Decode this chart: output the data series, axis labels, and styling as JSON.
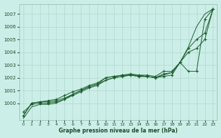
{
  "xlabel": "Graphe pression niveau de la mer (hPa)",
  "background_color": "#cceee8",
  "grid_color": "#b0d8cc",
  "line_color": "#1a5c2a",
  "xlim": [
    -0.5,
    23.5
  ],
  "ylim": [
    998.7,
    1007.8
  ],
  "yticks": [
    1000,
    1001,
    1002,
    1003,
    1004,
    1005,
    1006,
    1007
  ],
  "xticks": [
    0,
    1,
    2,
    3,
    4,
    5,
    6,
    7,
    8,
    9,
    10,
    11,
    12,
    13,
    14,
    15,
    16,
    17,
    18,
    19,
    20,
    21,
    22,
    23
  ],
  "series": [
    {
      "x": [
        0,
        1,
        2,
        3,
        4,
        5,
        6,
        7,
        8,
        9,
        10,
        11,
        12,
        13,
        14,
        15,
        16,
        17,
        18,
        19,
        20,
        21,
        22,
        23
      ],
      "y": [
        999.0,
        1000.0,
        1000.1,
        1000.1,
        1000.2,
        1000.4,
        1000.7,
        1001.0,
        1001.3,
        1001.5,
        1002.0,
        1002.1,
        1002.2,
        1002.2,
        1002.1,
        1002.1,
        1002.0,
        1002.1,
        1002.2,
        1003.2,
        1002.5,
        1002.5,
        1006.6,
        1007.4
      ],
      "has_markers": true
    },
    {
      "x": [
        0,
        1,
        2,
        3,
        4,
        5,
        6,
        7,
        8,
        9,
        10,
        11,
        12,
        13,
        14,
        15,
        16,
        17,
        18,
        19,
        20,
        21,
        22,
        23
      ],
      "y": [
        998.8,
        999.7,
        999.9,
        999.9,
        1000.0,
        1000.3,
        1000.7,
        1001.0,
        1001.3,
        1001.5,
        1001.8,
        1002.0,
        1002.1,
        1002.2,
        1002.2,
        1002.1,
        1002.0,
        1002.2,
        1002.4,
        1003.2,
        1004.4,
        1006.0,
        1007.0,
        1007.4
      ],
      "has_markers": false
    },
    {
      "x": [
        0,
        1,
        2,
        3,
        4,
        5,
        6,
        7,
        8,
        9,
        10,
        11,
        12,
        13,
        14,
        15,
        16,
        17,
        18,
        19,
        20,
        21,
        22,
        23
      ],
      "y": [
        999.3,
        999.9,
        1000.0,
        1000.0,
        1000.1,
        1000.3,
        1000.6,
        1000.9,
        1001.2,
        1001.4,
        1001.8,
        1002.0,
        1002.1,
        1002.2,
        1002.1,
        1002.1,
        1002.0,
        1002.3,
        1002.4,
        1003.2,
        1004.3,
        1005.0,
        1005.5,
        1007.4
      ],
      "has_markers": true
    },
    {
      "x": [
        0,
        1,
        2,
        3,
        4,
        5,
        6,
        7,
        8,
        9,
        10,
        11,
        12,
        13,
        14,
        15,
        16,
        17,
        18,
        19,
        20,
        21,
        22,
        23
      ],
      "y": [
        999.0,
        1000.0,
        1000.1,
        1000.2,
        1000.3,
        1000.6,
        1000.9,
        1001.1,
        1001.4,
        1001.6,
        1002.0,
        1002.1,
        1002.2,
        1002.3,
        1002.2,
        1002.2,
        1002.1,
        1002.5,
        1002.5,
        1003.2,
        1004.0,
        1004.3,
        1005.0,
        1007.4
      ],
      "has_markers": true
    }
  ]
}
